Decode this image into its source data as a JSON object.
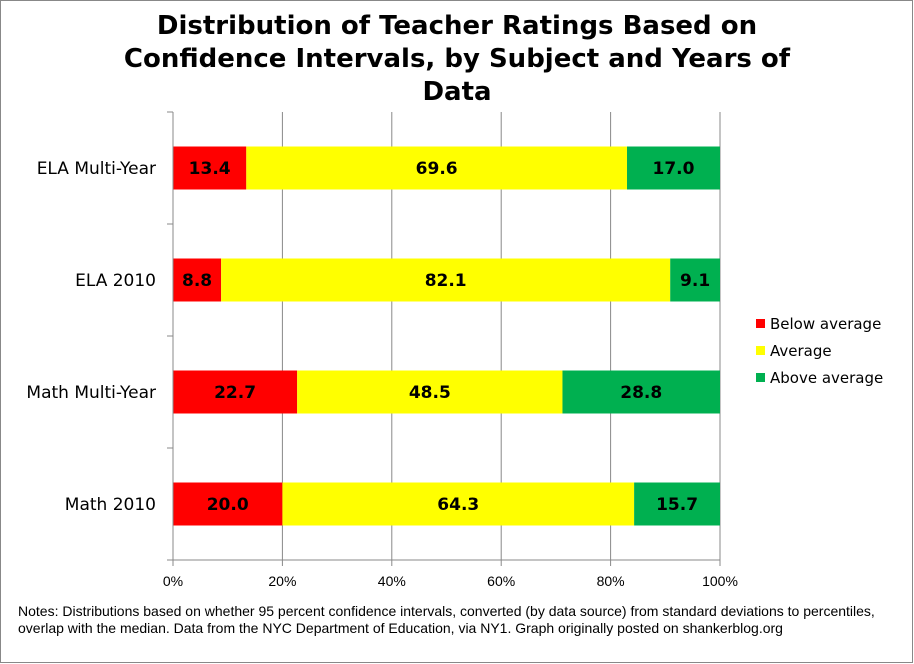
{
  "chart_data": {
    "type": "bar",
    "orientation": "horizontal",
    "stacked": "percent",
    "title_lines": [
      "Distribution of Teacher Ratings Based on",
      "Confidence Intervals, by Subject and Years of",
      "Data"
    ],
    "title": "Distribution of Teacher Ratings Based on Confidence Intervals, by Subject and Years of Data",
    "categories": [
      "ELA Multi-Year",
      "ELA 2010",
      "Math Multi-Year",
      "Math 2010"
    ],
    "series": [
      {
        "name": "Below average",
        "color": "#FF0000",
        "values": [
          13.4,
          8.8,
          22.7,
          20.0
        ],
        "labels": [
          "13.4",
          "8.8",
          "22.7",
          "20.0"
        ]
      },
      {
        "name": "Average",
        "color": "#FFFF00",
        "values": [
          69.6,
          82.1,
          48.5,
          64.3
        ],
        "labels": [
          "69.6",
          "82.1",
          "48.5",
          "64.3"
        ]
      },
      {
        "name": "Above average",
        "color": "#00B050",
        "values": [
          17.0,
          9.1,
          28.8,
          15.7
        ],
        "labels": [
          "17.0",
          "9.1",
          "28.8",
          "15.7"
        ]
      }
    ],
    "xlim": [
      0,
      100
    ],
    "xticks": [
      "0%",
      "20%",
      "40%",
      "60%",
      "80%",
      "100%"
    ],
    "grid": true,
    "legend_position": "right",
    "xlabel": "",
    "ylabel": ""
  },
  "notes": "Notes: Distributions based on whether 95 percent confidence intervals,  converted  (by data source) from standard deviations to percentiles, overlap with the median. Data from the NYC Department of Education, via NY1.  Graph originally posted on shankerblog.org"
}
